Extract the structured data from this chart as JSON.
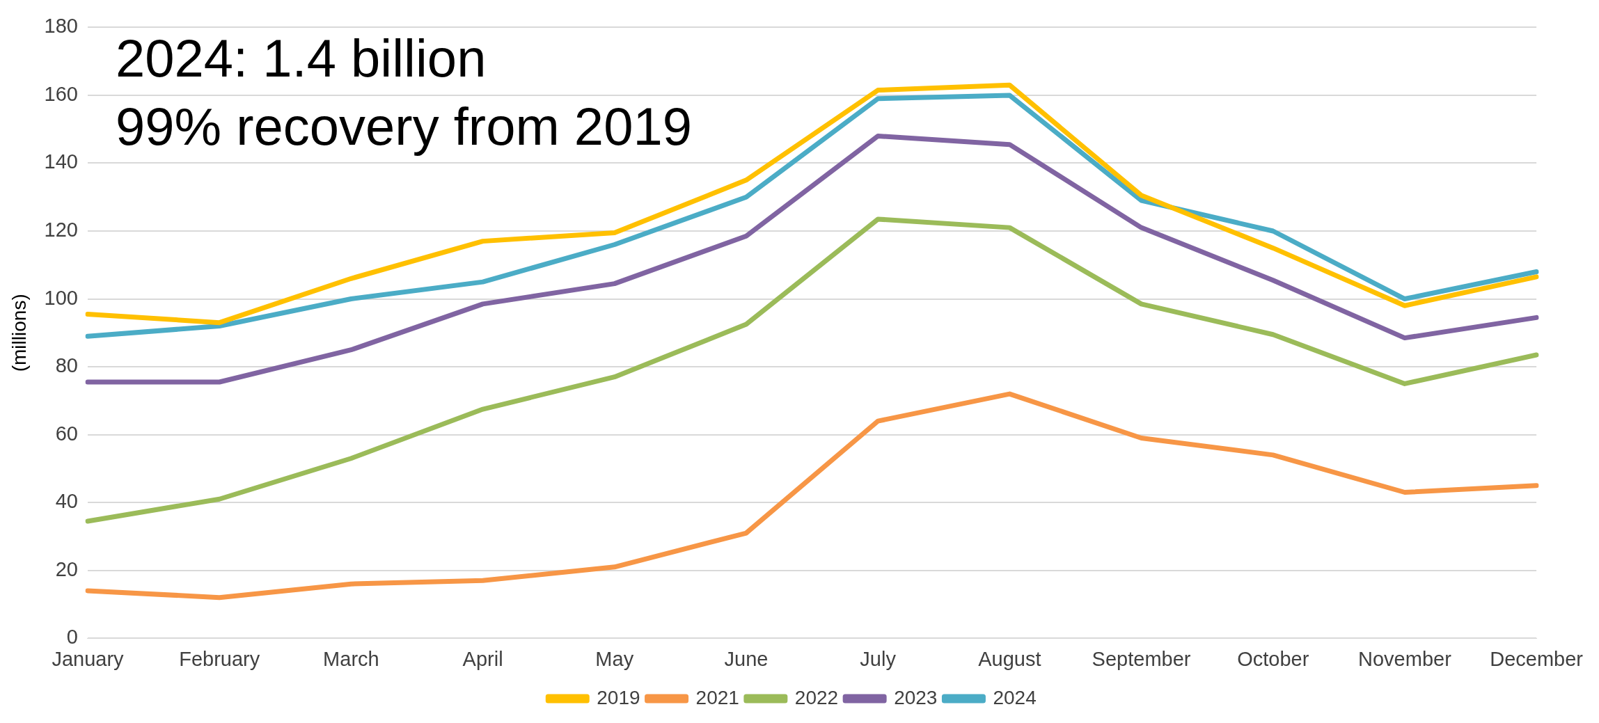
{
  "chart_data": {
    "type": "line",
    "ylabel": "(millions)",
    "annotations": [
      "2024: 1.4 billion",
      "99% recovery from 2019"
    ],
    "categories": [
      "January",
      "February",
      "March",
      "April",
      "May",
      "June",
      "July",
      "August",
      "September",
      "October",
      "November",
      "December"
    ],
    "series": [
      {
        "name": "2019",
        "color": "#ffc000",
        "values": [
          95.5,
          93,
          106,
          117,
          119.5,
          135,
          161.5,
          163,
          130.5,
          115,
          98,
          106.5
        ]
      },
      {
        "name": "2021",
        "color": "#f79646",
        "values": [
          14,
          12,
          16,
          17,
          21,
          31,
          64,
          72,
          59,
          54,
          43,
          45
        ]
      },
      {
        "name": "2022",
        "color": "#9bbb59",
        "values": [
          34.5,
          41,
          53,
          67.5,
          77,
          92.5,
          123.5,
          121,
          98.5,
          89.5,
          75,
          83.5
        ]
      },
      {
        "name": "2023",
        "color": "#8064a2",
        "values": [
          75.5,
          75.5,
          85,
          98.5,
          104.5,
          118.5,
          148,
          145.5,
          121,
          105.5,
          88.5,
          94.5
        ]
      },
      {
        "name": "2024",
        "color": "#4bacc6",
        "values": [
          89,
          92,
          100,
          105,
          116,
          130,
          159,
          160,
          129,
          120,
          100,
          108
        ]
      }
    ],
    "ylim": [
      0,
      180
    ],
    "yticks": [
      0,
      20,
      40,
      60,
      80,
      100,
      120,
      140,
      160,
      180
    ],
    "grid": "y",
    "legend": "bottom",
    "marker": "none",
    "line_style": "solid"
  }
}
